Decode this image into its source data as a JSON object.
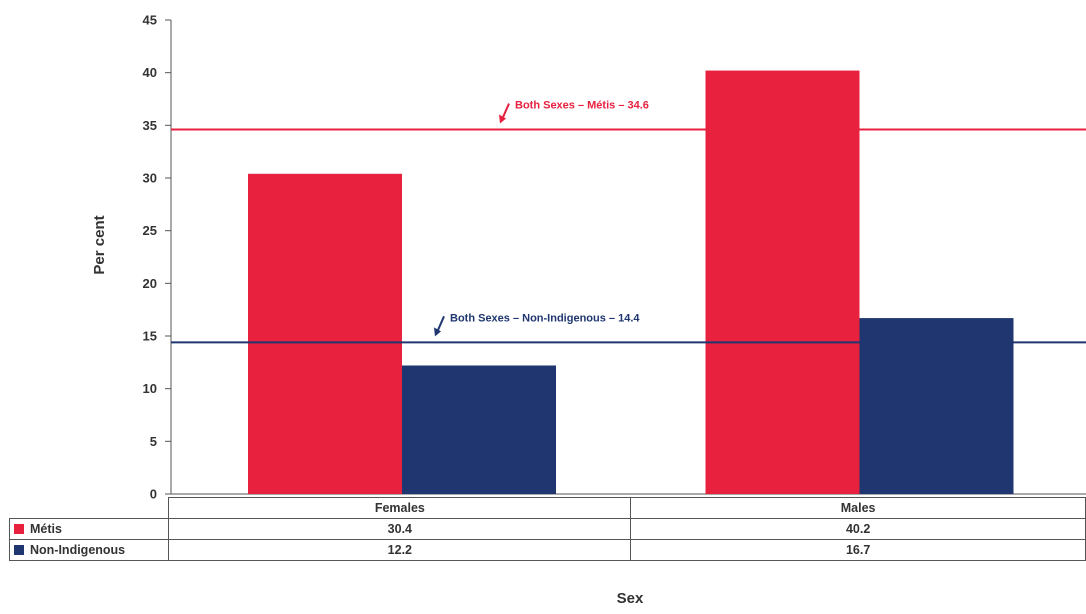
{
  "chart_data": {
    "type": "bar",
    "categories": [
      "Females",
      "Males"
    ],
    "series": [
      {
        "name": "Métis",
        "values": [
          30.4,
          40.2
        ],
        "color": "#e8213f"
      },
      {
        "name": "Non-Indigenous",
        "values": [
          12.2,
          16.7
        ],
        "color": "#1f3670"
      }
    ],
    "xlabel": "Sex",
    "ylabel": "Per cent",
    "ylim": [
      0,
      45
    ],
    "yticks": [
      0,
      5,
      10,
      15,
      20,
      25,
      30,
      35,
      40,
      45
    ],
    "reference_lines": [
      {
        "label": "Both Sexes – Métis – 34.6",
        "value": 34.6,
        "color": "#e8213f"
      },
      {
        "label": "Both Sexes – Non-Indigenous – 14.4",
        "value": 14.4,
        "color": "#1f3670"
      }
    ],
    "grid": false,
    "legend": "data-table-below"
  }
}
